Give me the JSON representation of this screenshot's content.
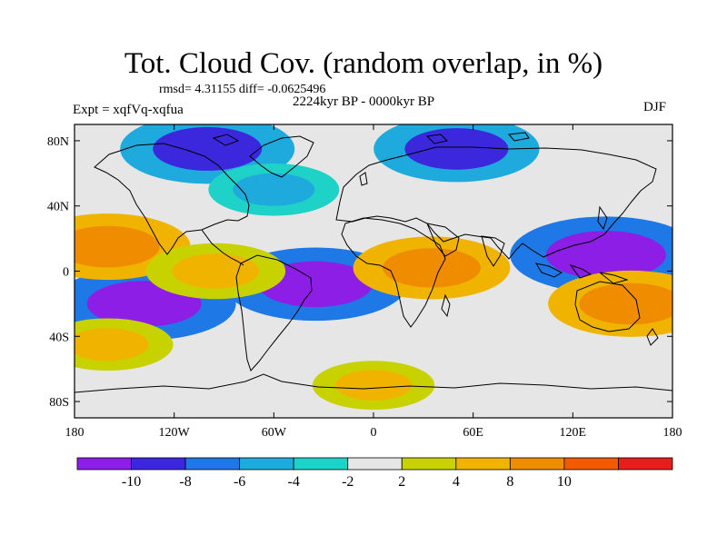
{
  "title": "Tot. Cloud Cov. (random overlap, in %)",
  "stats": "rmsd= 4.31155 diff= -0.0625496",
  "experiment": "Expt = xqfVq-xqfua",
  "period": "2224kyr BP - 0000kyr BP",
  "season": "DJF",
  "map": {
    "lon_range": [
      -180,
      180
    ],
    "lat_range": [
      -90,
      90
    ],
    "lat_ticks": [
      {
        "value": 80,
        "label": "80N"
      },
      {
        "value": 40,
        "label": "40N"
      },
      {
        "value": 0,
        "label": "0"
      },
      {
        "value": -40,
        "label": "40S"
      },
      {
        "value": -80,
        "label": "80S"
      }
    ],
    "lon_ticks": [
      {
        "value": -180,
        "label": "180"
      },
      {
        "value": -120,
        "label": "120W"
      },
      {
        "value": -60,
        "label": "60W"
      },
      {
        "value": 0,
        "label": "0"
      },
      {
        "value": 60,
        "label": "60E"
      },
      {
        "value": 120,
        "label": "120E"
      },
      {
        "value": 180,
        "label": "180"
      }
    ]
  },
  "colorbar": {
    "colors": [
      "#8c1ee6",
      "#3c28dc",
      "#1e78e6",
      "#1eaadc",
      "#1ed2c8",
      "#e6e6e6",
      "#c8d200",
      "#f0b400",
      "#f08c00",
      "#f05a00",
      "#e61e1e"
    ],
    "labels": [
      "-10",
      "-8",
      "-6",
      "-4",
      "-2",
      "2",
      "4",
      "8",
      "10"
    ]
  },
  "chart_data": {
    "type": "heatmap",
    "title": "Tot. Cloud Cov. (random overlap, in %)",
    "variable": "total cloud cover difference",
    "units": "%",
    "levels": [
      -10,
      -8,
      -6,
      -4,
      -2,
      2,
      4,
      8,
      10
    ],
    "regions": [
      {
        "lon": 140,
        "lat": 10,
        "value": -12
      },
      {
        "lon": -138,
        "lat": -20,
        "value": -11
      },
      {
        "lon": -35,
        "lat": -8,
        "value": -11
      },
      {
        "lon": -100,
        "lat": 75,
        "value": -10
      },
      {
        "lon": 50,
        "lat": 75,
        "value": -9
      },
      {
        "lon": -160,
        "lat": 15,
        "value": 9
      },
      {
        "lon": 155,
        "lat": -20,
        "value": 9
      },
      {
        "lon": 35,
        "lat": 2,
        "value": 8
      },
      {
        "lon": -95,
        "lat": 0,
        "value": 6
      },
      {
        "lon": -60,
        "lat": 50,
        "value": -5
      },
      {
        "lon": -160,
        "lat": -45,
        "value": 5
      },
      {
        "lon": 0,
        "lat": -70,
        "value": 4
      }
    ]
  }
}
